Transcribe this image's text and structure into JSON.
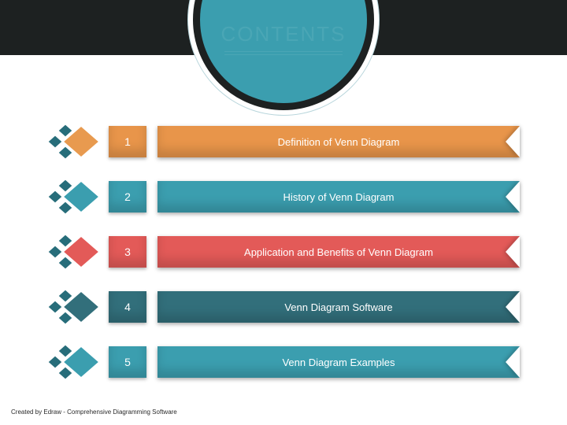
{
  "style": {
    "band_bg": "#1d2121",
    "circle_bg": "#3b9eaf",
    "circle_border": "#1d2121",
    "circle_outline": "#b9d6dc",
    "title_color": "#4aa6b5",
    "title_underline": "#4aa6b5"
  },
  "header": {
    "title": "CONTENTS"
  },
  "items": [
    {
      "num": "1",
      "label": "Definition of Venn Diagram",
      "diamond_color": "#e89a4f",
      "accent_color": "#276d7a",
      "bar_color": "#e8954a"
    },
    {
      "num": "2",
      "label": "History of Venn Diagram",
      "diamond_color": "#3b9eaf",
      "accent_color": "#276d7a",
      "bar_color": "#3b9eaf"
    },
    {
      "num": "3",
      "label": "Application and Benefits of Venn Diagram",
      "diamond_color": "#e35a58",
      "accent_color": "#276d7a",
      "bar_color": "#e35a58"
    },
    {
      "num": "4",
      "label": "Venn Diagram Software",
      "diamond_color": "#326f7b",
      "accent_color": "#276d7a",
      "bar_color": "#326f7b"
    },
    {
      "num": "5",
      "label": "Venn Diagram Examples",
      "diamond_color": "#3b9eaf",
      "accent_color": "#276d7a",
      "bar_color": "#3b9eaf"
    }
  ],
  "footer": {
    "text": "Created by Edraw - Comprehensive Diagramming Software"
  }
}
